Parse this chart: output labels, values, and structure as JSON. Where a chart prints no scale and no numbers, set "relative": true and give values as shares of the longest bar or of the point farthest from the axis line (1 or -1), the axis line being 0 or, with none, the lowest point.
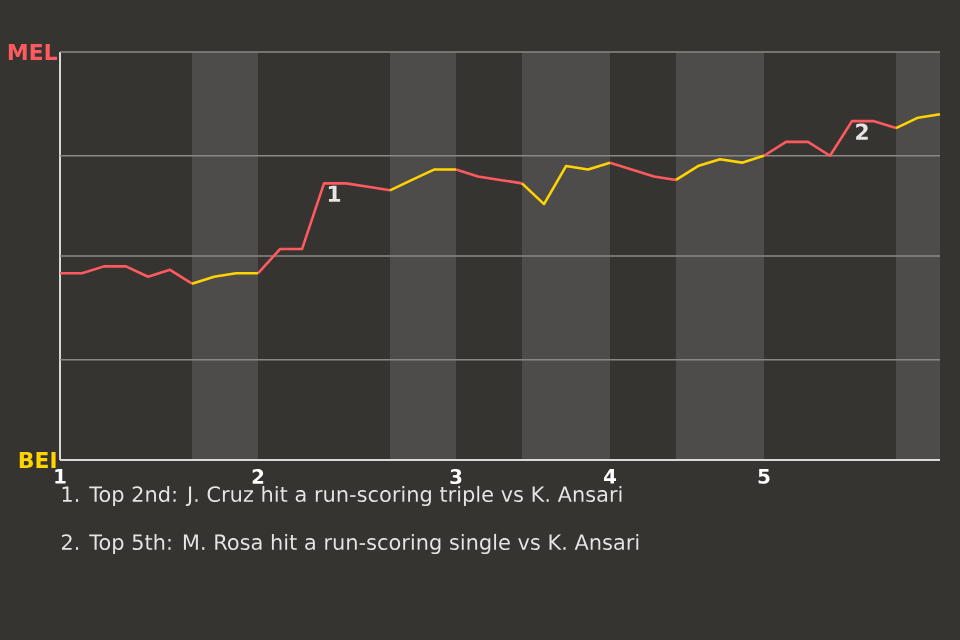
{
  "chart_data": {
    "type": "line",
    "relative": true,
    "categories": [
      "1",
      null,
      null,
      null,
      null,
      null,
      null,
      null,
      null,
      "2",
      null,
      null,
      null,
      null,
      null,
      null,
      null,
      null,
      "3",
      null,
      null,
      null,
      null,
      null,
      null,
      "4",
      null,
      null,
      null,
      null,
      null,
      null,
      "5",
      null,
      null,
      null,
      null,
      null,
      null,
      null,
      null
    ],
    "series": [
      {
        "color": "#ff5a5f",
        "values": [
          0.54,
          0.54,
          0.56,
          0.56,
          0.53,
          0.55,
          0.51,
          null,
          null,
          0.54,
          0.61,
          0.61,
          0.8,
          0.8,
          0.79,
          0.78,
          null,
          null,
          0.84,
          0.82,
          0.81,
          0.8,
          null,
          null,
          null,
          0.86,
          0.84,
          0.82,
          0.81,
          null,
          null,
          null,
          0.88,
          0.92,
          0.92,
          0.88,
          0.98,
          0.98,
          0.96,
          null,
          null
        ]
      },
      {
        "color": "#ffd400",
        "values": [
          null,
          null,
          null,
          null,
          null,
          null,
          0.51,
          0.53,
          0.54,
          0.54,
          null,
          null,
          null,
          null,
          null,
          0.78,
          0.81,
          0.84,
          0.84,
          null,
          null,
          0.8,
          0.74,
          0.85,
          0.84,
          0.86,
          null,
          null,
          0.81,
          0.85,
          0.87,
          0.86,
          0.88,
          null,
          null,
          null,
          null,
          null,
          0.96,
          0.99,
          1
        ]
      }
    ],
    "ref_lines": [
      {
        "axis": "y",
        "value": 0.29,
        "label": null,
        "color": "#8a8886"
      },
      {
        "axis": "y",
        "value": 0.59,
        "label": null,
        "color": "#8a8886"
      },
      {
        "axis": "y",
        "value": 0.88,
        "label": null,
        "color": "#8a8886"
      },
      {
        "axis": "y",
        "value": 1.18,
        "label": "MEL",
        "color": "#8a8886"
      }
    ],
    "annotations": [
      "BEI",
      {
        "text": "1",
        "y": 0.8
      },
      {
        "text": "2",
        "y": 0.98
      },
      "1. Top 2nd: J. Cruz hit a run-scoring triple vs K. Ansari",
      "2. Top 5th: M. Rosa hit a run-scoring single vs K. Ansari"
    ]
  }
}
